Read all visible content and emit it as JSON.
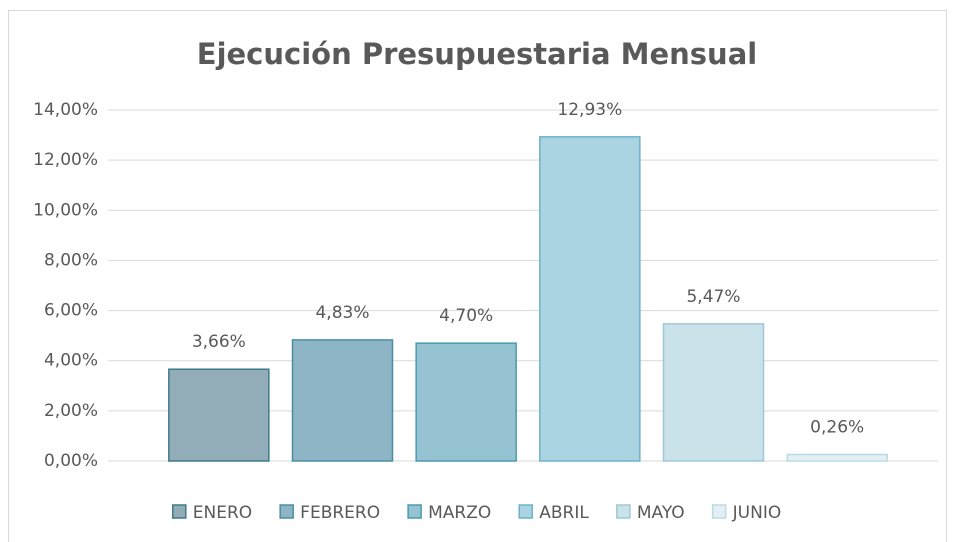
{
  "chart_data": {
    "type": "bar",
    "title": "Ejecución Presupuestaria Mensual",
    "categories": [
      "ENERO",
      "FEBRERO",
      "MARZO",
      "ABRIL",
      "MAYO",
      "JUNIO"
    ],
    "values": [
      3.66,
      4.83,
      4.7,
      12.93,
      5.47,
      0.26
    ],
    "value_labels": [
      "3,66%",
      "4,83%",
      "4,70%",
      "12,93%",
      "5,47%",
      "0,26%"
    ],
    "colors": [
      "#93adb8",
      "#8db5c5",
      "#95c3d2",
      "#abd4e2",
      "#cae3eb",
      "#e2eff4"
    ],
    "edge_colors": [
      "#3e7a8a",
      "#4b8ea3",
      "#4b9ab0",
      "#6eb2c7",
      "#9dc8d6",
      "#badbe5"
    ],
    "ylim": [
      0,
      14
    ],
    "yticks": [
      {
        "value": 0,
        "label": "0,00%"
      },
      {
        "value": 2,
        "label": "2,00%"
      },
      {
        "value": 4,
        "label": "4,00%"
      },
      {
        "value": 6,
        "label": "6,00%"
      },
      {
        "value": 8,
        "label": "8,00%"
      },
      {
        "value": 10,
        "label": "10,00%"
      },
      {
        "value": 12,
        "label": "12,00%"
      },
      {
        "value": 14,
        "label": "14,00%"
      }
    ],
    "grid": true,
    "legend": "bottom"
  }
}
